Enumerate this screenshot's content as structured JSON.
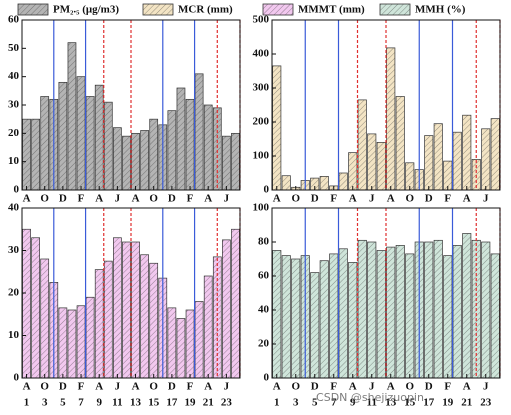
{
  "chart_data": [
    {
      "type": "bar",
      "series": [
        {
          "name": "PM₂.₅ (μg/m3)",
          "color": "#b4b4b4",
          "values": [
            25,
            25,
            33,
            32,
            38,
            52,
            40,
            33,
            37,
            31,
            22,
            19,
            20,
            21,
            25,
            23,
            28,
            36,
            32,
            41,
            30,
            29,
            19,
            20
          ]
        }
      ],
      "categories": [
        "A",
        null,
        "O",
        null,
        "D",
        null,
        "F",
        null,
        "A",
        null,
        "J",
        null,
        "A",
        null,
        "O",
        null,
        "D",
        null,
        "F",
        null,
        "A",
        null,
        "J",
        null
      ],
      "ylim": [
        0,
        60
      ],
      "yticks": [
        0,
        10,
        20,
        30,
        40,
        50,
        60
      ],
      "blue_lines": [
        3.5,
        7,
        15.5,
        19
      ],
      "red_lines": [
        9,
        12,
        21.5,
        24
      ]
    },
    {
      "type": "bar",
      "series": [
        {
          "name": "MCR (mm)",
          "color": "#f3e4c4",
          "values": [
            365,
            42,
            8,
            28,
            35,
            40,
            12,
            50,
            110,
            265,
            165,
            140,
            418,
            275,
            80,
            60,
            160,
            195,
            85,
            170,
            220,
            90,
            180,
            210
          ]
        }
      ],
      "categories": [
        "A",
        null,
        "O",
        null,
        "D",
        null,
        "F",
        null,
        "A",
        null,
        "J",
        null,
        "A",
        null,
        "O",
        null,
        "D",
        null,
        "F",
        null,
        "A",
        null,
        "J",
        null
      ],
      "ylim": [
        0,
        500
      ],
      "yticks": [
        0,
        100,
        200,
        300,
        400,
        500
      ],
      "blue_lines": [
        3.5,
        7,
        15.5,
        19
      ],
      "red_lines": [
        9,
        12,
        21.5,
        24
      ]
    },
    {
      "type": "bar",
      "series": [
        {
          "name": "MMMT (mm)",
          "color": "#f2c8ef",
          "values": [
            35,
            33,
            28,
            22.5,
            16.5,
            16,
            17,
            19,
            25.5,
            27.5,
            33,
            32,
            32,
            29,
            27,
            23.5,
            16.5,
            14,
            16,
            18,
            24,
            28.5,
            32.5,
            35
          ]
        }
      ],
      "categories": [
        "A",
        null,
        "O",
        null,
        "D",
        null,
        "F",
        null,
        "A",
        null,
        "J",
        null,
        "A",
        null,
        "O",
        null,
        "D",
        null,
        "F",
        null,
        "A",
        null,
        "J",
        null
      ],
      "categories2": [
        "1",
        null,
        "3",
        null,
        "5",
        null,
        "7",
        null,
        "9",
        null,
        "11",
        null,
        "13",
        null,
        "15",
        null,
        "17",
        null,
        "19",
        null,
        "21",
        null,
        "23",
        null
      ],
      "ylim": [
        0,
        40
      ],
      "yticks": [
        0,
        10,
        20,
        30,
        40
      ],
      "blue_lines": [
        3.5,
        7,
        15.5,
        19
      ],
      "red_lines": [
        9,
        12,
        21.5,
        24
      ]
    },
    {
      "type": "bar",
      "series": [
        {
          "name": "MMH (%)",
          "color": "#cfe5da",
          "values": [
            75,
            72,
            70,
            72,
            62,
            69,
            73,
            76,
            68,
            81,
            80,
            75,
            77,
            78,
            73,
            80,
            80,
            81,
            72,
            78,
            85,
            81,
            80,
            73
          ]
        }
      ],
      "categories": [
        "A",
        null,
        "O",
        null,
        "D",
        null,
        "F",
        null,
        "A",
        null,
        "J",
        null,
        "A",
        null,
        "O",
        null,
        "D",
        null,
        "F",
        null,
        "A",
        null,
        "J",
        null
      ],
      "categories2": [
        "1",
        null,
        "3",
        null,
        "5",
        null,
        "7",
        null,
        "9",
        null,
        "11",
        null,
        "13",
        null,
        "15",
        null,
        "17",
        null,
        "19",
        null,
        "21",
        null,
        "23",
        null
      ],
      "ylim": [
        0,
        100
      ],
      "yticks": [
        0,
        20,
        40,
        60,
        80,
        100
      ],
      "blue_lines": [
        3.5,
        7,
        15.5,
        19
      ],
      "red_lines": [
        9,
        12,
        21.5,
        24
      ]
    }
  ],
  "watermark": "CSDN @shejizuopin"
}
